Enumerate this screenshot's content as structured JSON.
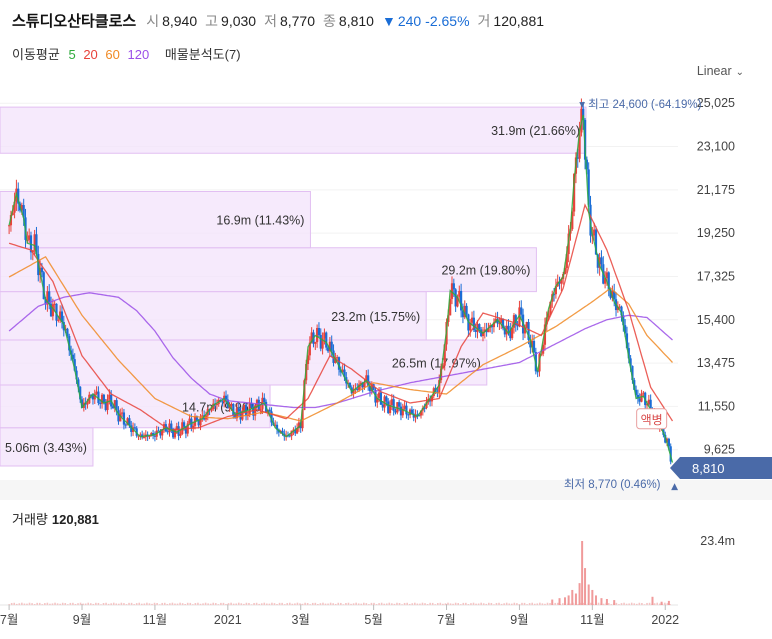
{
  "header": {
    "name": "스튜디오산타클로스",
    "open_label": "시",
    "open": "8,940",
    "high_label": "고",
    "high": "9,030",
    "low_label": "저",
    "low": "8,770",
    "close_label": "종",
    "close": "8,810",
    "change_arrow": "▼",
    "change": "240",
    "change_pct": "-2.65%",
    "volume_label": "거",
    "volume": "120,881"
  },
  "indicators": {
    "ma_label": "이동평균",
    "ma_periods": [
      {
        "period": "5",
        "color": "#2eaa3c"
      },
      {
        "period": "20",
        "color": "#e8433b"
      },
      {
        "period": "60",
        "color": "#f08a24"
      },
      {
        "period": "120",
        "color": "#9b4fe8"
      }
    ],
    "volume_profile_label": "매물분석도(7)"
  },
  "scale_mode": {
    "label": "Linear",
    "icon": "chevron-down-icon"
  },
  "chart_data": {
    "type": "candlestick",
    "y_ticks": [
      "25,025",
      "23,100",
      "21,175",
      "19,250",
      "17,325",
      "15,400",
      "13,475",
      "11,550",
      "9,625"
    ],
    "ylim": [
      8500,
      25300
    ],
    "x_ticks": [
      {
        "label": "7월",
        "t": 0
      },
      {
        "label": "9월",
        "t": 2
      },
      {
        "label": "11월",
        "t": 4
      },
      {
        "label": "2021",
        "t": 6
      },
      {
        "label": "3월",
        "t": 8
      },
      {
        "label": "5월",
        "t": 10
      },
      {
        "label": "7월",
        "t": 12
      },
      {
        "label": "9월",
        "t": 14
      },
      {
        "label": "11월",
        "t": 16
      },
      {
        "label": "2022",
        "t": 18
      }
    ],
    "xlim_months": [
      -0.25,
      18.35
    ],
    "last_price": "8,810",
    "high_marker": {
      "text": "최고 24,600 (-64.19%)",
      "price": 24600,
      "t": 15.75
    },
    "low_marker": {
      "text": "최저 8,770 (0.46%)",
      "price": 8770,
      "t": 18.2
    },
    "event_badge": {
      "text": "액병",
      "t": 17.6,
      "price": 11000
    },
    "volume_profile": [
      {
        "text": "5.06m (3.43%)",
        "low": 8900,
        "high": 10600,
        "volume_m": 5.06
      },
      {
        "text": "14.7m (9.96%)",
        "low": 10600,
        "high": 12500,
        "volume_m": 14.7
      },
      {
        "text": "26.5m (17.97%)",
        "low": 12500,
        "high": 14500,
        "volume_m": 26.5
      },
      {
        "text": "23.2m (15.75%)",
        "low": 14500,
        "high": 16650,
        "volume_m": 23.2
      },
      {
        "text": "29.2m (19.80%)",
        "low": 16650,
        "high": 18600,
        "volume_m": 29.2
      },
      {
        "text": "16.9m (11.43%)",
        "low": 18600,
        "high": 21100,
        "volume_m": 16.9
      },
      {
        "text": "31.9m (21.66%)",
        "low": 22800,
        "high": 24850,
        "volume_m": 31.9
      }
    ],
    "close_series": {
      "t": [
        0,
        0.2,
        0.4,
        0.5,
        0.7,
        1.0,
        1.2,
        1.5,
        1.8,
        2.0,
        2.3,
        2.6,
        2.8,
        3.0,
        3.3,
        3.6,
        4.0,
        4.3,
        4.6,
        5.0,
        5.3,
        5.6,
        5.9,
        6.2,
        6.6,
        7.0,
        7.3,
        7.6,
        8.0,
        8.2,
        8.4,
        8.7,
        9.0,
        9.4,
        9.8,
        10.1,
        10.4,
        10.8,
        11.2,
        11.5,
        11.8,
        12.0,
        12.1,
        12.3,
        12.6,
        13.0,
        13.4,
        13.7,
        14.0,
        14.3,
        14.5,
        14.8,
        15.0,
        15.2,
        15.4,
        15.5,
        15.65,
        15.75,
        15.9,
        16.0,
        16.2,
        16.4,
        16.6,
        16.8,
        17.0,
        17.2,
        17.4,
        17.6,
        17.8,
        18.0,
        18.2
      ],
      "v": [
        19600,
        21000,
        19900,
        18800,
        18700,
        16300,
        15900,
        15200,
        13200,
        11500,
        12100,
        11700,
        11800,
        11200,
        10700,
        10200,
        10300,
        10600,
        10400,
        10800,
        11000,
        11600,
        11900,
        11200,
        11400,
        11700,
        10600,
        10200,
        10700,
        14200,
        14700,
        14400,
        13500,
        12200,
        12700,
        11900,
        11600,
        11400,
        11100,
        11800,
        12500,
        14900,
        16700,
        16400,
        15300,
        14800,
        15400,
        14800,
        15600,
        14500,
        13100,
        15900,
        16900,
        17300,
        19500,
        21600,
        23800,
        24500,
        20200,
        19200,
        17800,
        17100,
        16200,
        15700,
        13700,
        11900,
        12000,
        11400,
        10900,
        10200,
        9050
      ]
    },
    "ma_series": {
      "ma20_t": [
        0,
        0.6,
        1.2,
        2.0,
        2.8,
        3.6,
        4.4,
        5.2,
        6.0,
        6.8,
        7.6,
        8.2,
        8.8,
        9.4,
        10.2,
        11.0,
        11.8,
        12.4,
        13.0,
        13.8,
        14.6,
        15.2,
        15.8,
        16.4,
        17.0,
        17.6,
        18.2
      ],
      "ma20_v": [
        18800,
        18500,
        17100,
        13800,
        12100,
        11400,
        10500,
        10600,
        11100,
        11400,
        11000,
        11900,
        13800,
        13200,
        12200,
        11700,
        11900,
        14200,
        15700,
        15300,
        14700,
        16800,
        20500,
        18500,
        15800,
        12400,
        10900
      ],
      "ma60_t": [
        0,
        1.0,
        2.0,
        3.0,
        4.0,
        5.0,
        6.0,
        7.0,
        8.0,
        9.0,
        10.0,
        11.0,
        12.0,
        13.0,
        14.0,
        15.0,
        16.0,
        16.5,
        17.0,
        17.5,
        18.2
      ],
      "ma60_v": [
        17300,
        18200,
        15600,
        13600,
        11900,
        11100,
        11000,
        11300,
        10900,
        11700,
        12600,
        12300,
        12100,
        13400,
        14200,
        15100,
        16200,
        16800,
        16100,
        14700,
        13500
      ],
      "ma120_t": [
        0,
        0.8,
        1.5,
        2.2,
        3.0,
        3.5,
        4.0,
        4.5,
        5.0,
        5.5,
        6.0,
        6.6,
        7.2,
        7.8,
        8.4,
        9.0,
        10.0,
        11.0,
        12.0,
        13.0,
        14.0,
        14.6,
        15.2,
        15.8,
        16.4,
        17.0,
        17.5,
        18.2
      ],
      "ma120_v": [
        14900,
        16000,
        16400,
        16600,
        16400,
        15800,
        14900,
        13700,
        12800,
        12100,
        11800,
        11700,
        11600,
        11500,
        11500,
        11700,
        12200,
        12600,
        12900,
        13200,
        13500,
        14000,
        14500,
        15000,
        15400,
        15600,
        15500,
        14500
      ]
    },
    "volume": {
      "scale_label": "23.4m",
      "scale_value_m": 23.4,
      "bars": [
        {
          "t": 15.35,
          "v_m": 3.5
        },
        {
          "t": 15.45,
          "v_m": 5.5
        },
        {
          "t": 15.55,
          "v_m": 4.2
        },
        {
          "t": 15.65,
          "v_m": 8.0
        },
        {
          "t": 15.72,
          "v_m": 23.4
        },
        {
          "t": 15.8,
          "v_m": 13.5
        },
        {
          "t": 15.9,
          "v_m": 7.5
        },
        {
          "t": 16.0,
          "v_m": 5.5
        },
        {
          "t": 16.1,
          "v_m": 3.5
        },
        {
          "t": 16.25,
          "v_m": 2.5
        },
        {
          "t": 16.4,
          "v_m": 2.2
        },
        {
          "t": 16.6,
          "v_m": 1.8
        },
        {
          "t": 14.9,
          "v_m": 2.0
        },
        {
          "t": 15.1,
          "v_m": 2.5
        },
        {
          "t": 15.25,
          "v_m": 2.8
        },
        {
          "t": 17.65,
          "v_m": 3.0
        },
        {
          "t": 17.9,
          "v_m": 1.2
        },
        {
          "t": 18.1,
          "v_m": 1.5
        }
      ]
    }
  },
  "volume_panel": {
    "label": "거래량",
    "value": "120,881"
  }
}
